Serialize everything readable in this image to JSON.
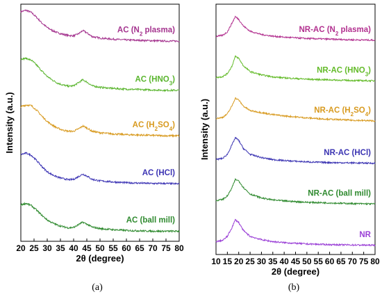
{
  "chart_data": [
    {
      "id": "a",
      "type": "line",
      "caption": "(a)",
      "xlabel": "2θ (degree)",
      "ylabel": "Intensity (a.u.)",
      "xlim": [
        20,
        80
      ],
      "xticks": [
        20,
        25,
        30,
        35,
        40,
        45,
        50,
        55,
        60,
        65,
        70,
        75,
        80
      ],
      "yticks_shown": false,
      "series": [
        {
          "name": "AC (N2 plasma)",
          "label_main": "AC (N",
          "label_sub": "2",
          "label_end": " plasma)",
          "color": "#a4338e",
          "offset": 4,
          "points": [
            [
              20,
              1.0
            ],
            [
              22,
              1.04
            ],
            [
              24,
              0.98
            ],
            [
              26,
              0.85
            ],
            [
              28,
              0.7
            ],
            [
              30,
              0.58
            ],
            [
              32,
              0.5
            ],
            [
              34,
              0.44
            ],
            [
              36,
              0.4
            ],
            [
              38,
              0.37
            ],
            [
              40,
              0.36
            ],
            [
              42,
              0.42
            ],
            [
              43.5,
              0.5
            ],
            [
              45,
              0.44
            ],
            [
              47,
              0.34
            ],
            [
              50,
              0.3
            ],
            [
              55,
              0.27
            ],
            [
              60,
              0.25
            ],
            [
              65,
              0.24
            ],
            [
              70,
              0.23
            ],
            [
              75,
              0.22
            ],
            [
              80,
              0.22
            ]
          ]
        },
        {
          "name": "AC (HNO3)",
          "label_main": "AC (HNO",
          "label_sub": "3",
          "label_end": ")",
          "color": "#5ab52e",
          "offset": 3,
          "points": [
            [
              20,
              0.98
            ],
            [
              22,
              1.0
            ],
            [
              24,
              0.95
            ],
            [
              26,
              0.82
            ],
            [
              28,
              0.66
            ],
            [
              30,
              0.52
            ],
            [
              32,
              0.42
            ],
            [
              34,
              0.34
            ],
            [
              36,
              0.29
            ],
            [
              38,
              0.26
            ],
            [
              40,
              0.27
            ],
            [
              42,
              0.36
            ],
            [
              43.5,
              0.43
            ],
            [
              45,
              0.37
            ],
            [
              47,
              0.27
            ],
            [
              50,
              0.23
            ],
            [
              55,
              0.2
            ],
            [
              60,
              0.18
            ],
            [
              65,
              0.17
            ],
            [
              70,
              0.16
            ],
            [
              75,
              0.15
            ],
            [
              80,
              0.15
            ]
          ]
        },
        {
          "name": "AC (H2SO4)",
          "label_main": "AC (H",
          "label_sub": "2",
          "label_mid": "SO",
          "label_sub2": "4",
          "label_end": ")",
          "color": "#d89a1f",
          "offset": 2,
          "points": [
            [
              20,
              0.95
            ],
            [
              22,
              1.0
            ],
            [
              24,
              0.98
            ],
            [
              26,
              0.86
            ],
            [
              28,
              0.7
            ],
            [
              30,
              0.56
            ],
            [
              32,
              0.46
            ],
            [
              34,
              0.38
            ],
            [
              36,
              0.33
            ],
            [
              38,
              0.3
            ],
            [
              40,
              0.3
            ],
            [
              42,
              0.37
            ],
            [
              43.5,
              0.44
            ],
            [
              45,
              0.39
            ],
            [
              47,
              0.3
            ],
            [
              50,
              0.26
            ],
            [
              55,
              0.23
            ],
            [
              60,
              0.21
            ],
            [
              65,
              0.2
            ],
            [
              70,
              0.19
            ],
            [
              75,
              0.18
            ],
            [
              80,
              0.18
            ]
          ]
        },
        {
          "name": "AC (HCl)",
          "label_main": "AC (HCl)",
          "color": "#3c34b4",
          "offset": 1,
          "points": [
            [
              20,
              0.92
            ],
            [
              22,
              0.96
            ],
            [
              24,
              0.9
            ],
            [
              26,
              0.76
            ],
            [
              28,
              0.6
            ],
            [
              30,
              0.46
            ],
            [
              32,
              0.38
            ],
            [
              34,
              0.32
            ],
            [
              36,
              0.28
            ],
            [
              38,
              0.25
            ],
            [
              40,
              0.26
            ],
            [
              42,
              0.34
            ],
            [
              43.5,
              0.4
            ],
            [
              45,
              0.35
            ],
            [
              47,
              0.26
            ],
            [
              50,
              0.22
            ],
            [
              55,
              0.19
            ],
            [
              60,
              0.17
            ],
            [
              65,
              0.16
            ],
            [
              70,
              0.15
            ],
            [
              75,
              0.15
            ],
            [
              80,
              0.14
            ]
          ]
        },
        {
          "name": "AC (ball mill)",
          "label_main": "AC (ball mill)",
          "color": "#2f8a2f",
          "offset": 0,
          "points": [
            [
              20,
              0.82
            ],
            [
              22,
              0.86
            ],
            [
              24,
              0.8
            ],
            [
              26,
              0.68
            ],
            [
              28,
              0.54
            ],
            [
              30,
              0.42
            ],
            [
              32,
              0.34
            ],
            [
              34,
              0.28
            ],
            [
              36,
              0.24
            ],
            [
              38,
              0.21
            ],
            [
              40,
              0.22
            ],
            [
              42,
              0.3
            ],
            [
              43.5,
              0.36
            ],
            [
              45,
              0.31
            ],
            [
              47,
              0.23
            ],
            [
              50,
              0.19
            ],
            [
              55,
              0.16
            ],
            [
              60,
              0.14
            ],
            [
              65,
              0.13
            ],
            [
              70,
              0.12
            ],
            [
              75,
              0.12
            ],
            [
              80,
              0.12
            ]
          ]
        }
      ]
    },
    {
      "id": "b",
      "type": "line",
      "caption": "(b)",
      "xlabel": "2θ (degree)",
      "ylabel": "Intensity (a.u.)",
      "xlim": [
        10,
        80
      ],
      "xticks": [
        10,
        15,
        20,
        25,
        30,
        35,
        40,
        45,
        50,
        55,
        60,
        65,
        70,
        75,
        80
      ],
      "yticks_shown": false,
      "series": [
        {
          "name": "NR-AC (N2 plasma)",
          "label_main": "NR-AC (N",
          "label_sub": "2",
          "label_end": " plasma)",
          "color": "#b2308f",
          "offset": 5,
          "points": [
            [
              10,
              0.22
            ],
            [
              13,
              0.26
            ],
            [
              15,
              0.36
            ],
            [
              17,
              0.62
            ],
            [
              18.5,
              0.82
            ],
            [
              20,
              0.74
            ],
            [
              22,
              0.54
            ],
            [
              25,
              0.38
            ],
            [
              30,
              0.28
            ],
            [
              35,
              0.23
            ],
            [
              40,
              0.2
            ],
            [
              50,
              0.16
            ],
            [
              60,
              0.14
            ],
            [
              70,
              0.12
            ],
            [
              80,
              0.11
            ]
          ]
        },
        {
          "name": "NR-AC (HNO3)",
          "label_main": "NR-AC (HNO",
          "label_sub": "3",
          "label_end": ")",
          "color": "#64bb2a",
          "offset": 4,
          "points": [
            [
              10,
              0.22
            ],
            [
              13,
              0.25
            ],
            [
              15,
              0.34
            ],
            [
              17,
              0.56
            ],
            [
              18.5,
              0.86
            ],
            [
              20,
              0.8
            ],
            [
              22,
              0.58
            ],
            [
              25,
              0.4
            ],
            [
              30,
              0.3
            ],
            [
              35,
              0.24
            ],
            [
              40,
              0.21
            ],
            [
              50,
              0.17
            ],
            [
              60,
              0.15
            ],
            [
              70,
              0.13
            ],
            [
              80,
              0.12
            ]
          ]
        },
        {
          "name": "NR-AC (H2SO4)",
          "label_main": "NR-AC (H",
          "label_sub": "2",
          "label_mid": "SO",
          "label_sub2": "4",
          "label_end": ")",
          "color": "#d89a1f",
          "offset": 3,
          "points": [
            [
              10,
              0.22
            ],
            [
              13,
              0.26
            ],
            [
              15,
              0.36
            ],
            [
              17,
              0.6
            ],
            [
              18.5,
              0.84
            ],
            [
              20,
              0.78
            ],
            [
              22,
              0.6
            ],
            [
              25,
              0.46
            ],
            [
              30,
              0.4
            ],
            [
              35,
              0.34
            ],
            [
              40,
              0.3
            ],
            [
              50,
              0.24
            ],
            [
              60,
              0.2
            ],
            [
              70,
              0.17
            ],
            [
              80,
              0.15
            ]
          ]
        },
        {
          "name": "NR-AC (HCl)",
          "label_main": "NR-AC (HCl)",
          "color": "#3a33b2",
          "offset": 2,
          "points": [
            [
              10,
              0.22
            ],
            [
              13,
              0.26
            ],
            [
              15,
              0.38
            ],
            [
              17,
              0.66
            ],
            [
              18.5,
              0.88
            ],
            [
              20,
              0.8
            ],
            [
              22,
              0.56
            ],
            [
              25,
              0.38
            ],
            [
              30,
              0.28
            ],
            [
              35,
              0.22
            ],
            [
              40,
              0.19
            ],
            [
              50,
              0.15
            ],
            [
              60,
              0.13
            ],
            [
              70,
              0.12
            ],
            [
              80,
              0.11
            ]
          ]
        },
        {
          "name": "NR-AC (ball mill)",
          "label_main": "NR-AC (ball mill)",
          "color": "#2f8a2f",
          "offset": 1,
          "points": [
            [
              10,
              0.22
            ],
            [
              13,
              0.26
            ],
            [
              15,
              0.36
            ],
            [
              17,
              0.6
            ],
            [
              18.5,
              0.86
            ],
            [
              20,
              0.82
            ],
            [
              22,
              0.62
            ],
            [
              25,
              0.42
            ],
            [
              30,
              0.3
            ],
            [
              35,
              0.24
            ],
            [
              40,
              0.21
            ],
            [
              50,
              0.17
            ],
            [
              60,
              0.15
            ],
            [
              70,
              0.13
            ],
            [
              80,
              0.12
            ]
          ]
        },
        {
          "name": "NR",
          "label_main": "NR",
          "color": "#9a3fd6",
          "offset": 0,
          "points": [
            [
              10,
              0.22
            ],
            [
              13,
              0.26
            ],
            [
              15,
              0.38
            ],
            [
              17,
              0.64
            ],
            [
              18.5,
              0.88
            ],
            [
              20,
              0.8
            ],
            [
              22,
              0.56
            ],
            [
              25,
              0.38
            ],
            [
              30,
              0.28
            ],
            [
              35,
              0.22
            ],
            [
              40,
              0.19
            ],
            [
              50,
              0.15
            ],
            [
              60,
              0.13
            ],
            [
              70,
              0.12
            ],
            [
              80,
              0.11
            ]
          ]
        }
      ]
    }
  ]
}
